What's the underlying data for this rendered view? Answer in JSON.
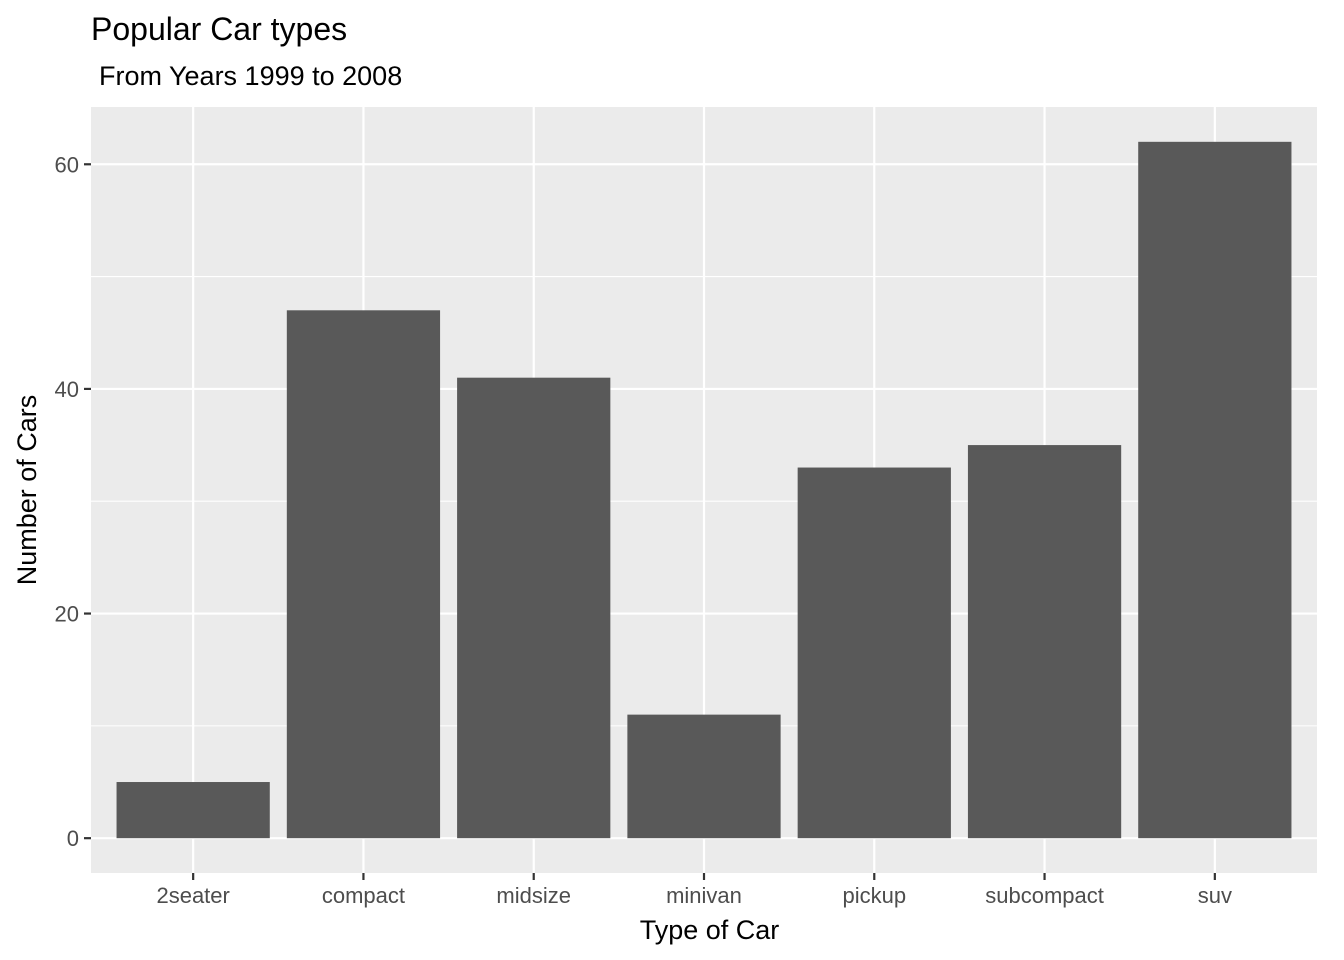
{
  "chart_data": {
    "type": "bar",
    "title": "Popular Car types",
    "subtitle": "From Years 1999 to 2008",
    "xlabel": "Type of Car",
    "ylabel": "Number of Cars",
    "categories": [
      "2seater",
      "compact",
      "midsize",
      "minivan",
      "pickup",
      "subcompact",
      "suv"
    ],
    "values": [
      5,
      47,
      41,
      11,
      33,
      35,
      62
    ],
    "ylim": [
      -3.1,
      65.1
    ],
    "yticks": [
      0,
      20,
      40,
      60
    ],
    "ytick_labels": [
      "0",
      "20",
      "40",
      "60"
    ],
    "grid": true,
    "legend": "none",
    "colors": {
      "bar": "#595959",
      "panel": "#ebebeb",
      "grid_major": "#ffffff",
      "tick": "#333333"
    }
  }
}
